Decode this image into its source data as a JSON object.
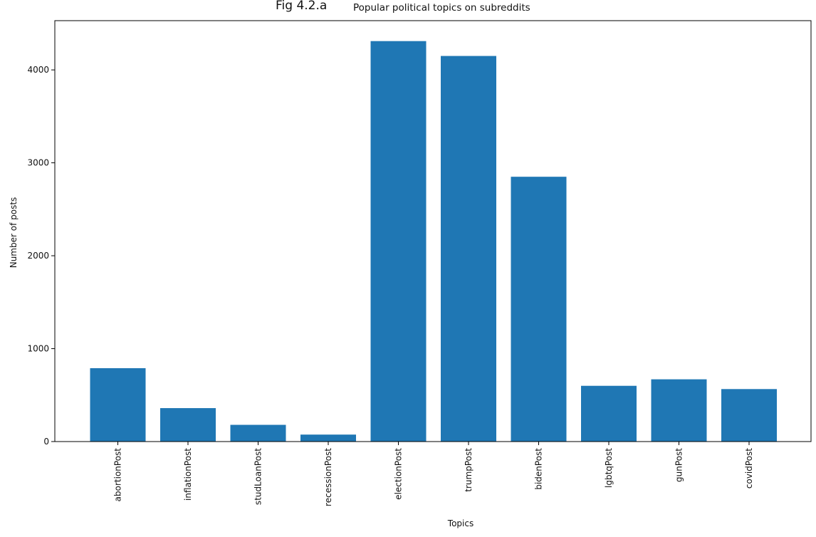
{
  "figure": {
    "label": "Fig 4.2.a",
    "title": "Popular political topics on subreddits"
  },
  "chart_data": {
    "type": "bar",
    "categories": [
      "abortionPost",
      "inflationPost",
      "studLoanPost",
      "recessionPost",
      "electionPost",
      "trumpPost",
      "bidenPost",
      "lgbtqPost",
      "gunPost",
      "covidPost"
    ],
    "values": [
      790,
      360,
      180,
      75,
      4310,
      4150,
      2850,
      600,
      670,
      565
    ],
    "title": "Popular political topics on subreddits",
    "xlabel": "Topics",
    "ylabel": "Number of posts",
    "ylim": [
      0,
      4530
    ],
    "yticks": [
      0,
      1000,
      2000,
      3000,
      4000
    ],
    "bar_color": "#1f77b4",
    "grid": false
  }
}
